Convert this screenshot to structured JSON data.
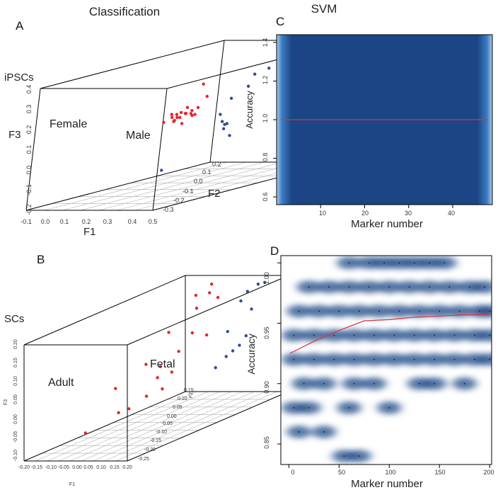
{
  "figure": {
    "title_left": "Classification",
    "title_right": "SVM",
    "panel_labels": [
      "A",
      "B",
      "C",
      "D"
    ]
  },
  "colors": {
    "female_adult": "#e8232a",
    "male_fetal": "#2f4b9c",
    "heat_dark": "#1b4585",
    "heat_light": "#5ea2d8",
    "line": "#e0313a",
    "box": "#000000",
    "floor_grid": "#b0b0b0"
  },
  "chart_data": [
    {
      "panel": "A",
      "type": "scatter",
      "title": "Classification",
      "box_label": "iPSCs",
      "xlabel": "F1",
      "ylabel": "F2",
      "zlabel": "F3",
      "x_ticks": [
        "-0.1",
        "0.0",
        "0.1",
        "0.2",
        "0.3",
        "0.4",
        "0.5"
      ],
      "y_ticks": [
        "-0.3",
        "-0.2",
        "-0.1",
        "0.0",
        "0.1",
        "0.2"
      ],
      "z_ticks": [
        "-0.2",
        "-0.1",
        "0.0",
        "0.1",
        "0.2",
        "0.3",
        "0.4"
      ],
      "groups": [
        "Female",
        "Male"
      ],
      "series": [
        {
          "name": "Female",
          "color": "#e8232a",
          "points": [
            [
              0.02,
              0.02,
              0.12
            ],
            [
              0.03,
              0.0,
              0.13
            ],
            [
              0.04,
              0.01,
              0.11
            ],
            [
              0.05,
              -0.01,
              0.12
            ],
            [
              0.06,
              0.02,
              0.125
            ],
            [
              0.07,
              0.0,
              0.115
            ],
            [
              0.08,
              0.01,
              0.13
            ],
            [
              0.03,
              -0.02,
              0.1
            ],
            [
              0.09,
              0.02,
              0.14
            ],
            [
              0.1,
              0.03,
              0.15
            ],
            [
              0.05,
              0.03,
              0.15
            ],
            [
              0.12,
              0.04,
              0.2
            ],
            [
              0.13,
              0.02,
              0.27
            ],
            [
              0.06,
              -0.01,
              0.1
            ],
            [
              0.11,
              0.01,
              0.12
            ],
            [
              0.14,
              0.0,
              0.13
            ],
            [
              0.08,
              -0.02,
              0.11
            ],
            [
              0.04,
              0.02,
              0.13
            ],
            [
              0.07,
              0.03,
              0.12
            ],
            [
              0.1,
              -0.01,
              0.09
            ]
          ]
        },
        {
          "name": "Male",
          "color": "#2f4b9c",
          "points": [
            [
              0.3,
              0.06,
              0.3
            ],
            [
              0.33,
              0.08,
              0.32
            ],
            [
              0.37,
              0.12,
              0.37
            ],
            [
              0.31,
              0.04,
              0.25
            ],
            [
              0.27,
              0.02,
              0.2
            ],
            [
              0.26,
              0.0,
              0.13
            ],
            [
              0.29,
              -0.01,
              0.1
            ],
            [
              0.28,
              0.01,
              0.08
            ],
            [
              0.25,
              0.02,
              0.05
            ],
            [
              0.32,
              -0.02,
              0.09
            ],
            [
              0.4,
              -0.05,
              0.05
            ],
            [
              0.35,
              -0.2,
              -0.05
            ]
          ]
        }
      ]
    },
    {
      "panel": "B",
      "type": "scatter",
      "box_label": "SCs",
      "xlabel": "F1",
      "ylabel": "F2",
      "zlabel": "F3",
      "x_ticks": [
        "-0.20",
        "-0.15",
        "-0.10",
        "-0.05",
        "0.00",
        "0.05",
        "0.10",
        "0.15",
        "0.20"
      ],
      "y_ticks": [
        "-0.25",
        "-0.20",
        "-0.15",
        "-0.10",
        "-0.05",
        "0.00",
        "0.05",
        "0.10",
        "0.15"
      ],
      "z_ticks": [
        "-0.10",
        "-0.05",
        "0.00",
        "0.05",
        "0.10",
        "0.15",
        "0.20"
      ],
      "groups": [
        "Adult",
        "Fetal"
      ],
      "series": [
        {
          "name": "Adult",
          "color": "#e8232a",
          "points": [
            [
              -0.02,
              0.1,
              0.2
            ],
            [
              0.05,
              0.05,
              0.2
            ],
            [
              -0.05,
              0.08,
              0.18
            ],
            [
              0.02,
              0.09,
              0.17
            ],
            [
              0.0,
              0.05,
              0.16
            ],
            [
              -0.03,
              0.0,
              0.12
            ],
            [
              0.03,
              0.02,
              0.11
            ],
            [
              0.07,
              0.03,
              0.1
            ],
            [
              0.04,
              -0.02,
              0.08
            ],
            [
              -0.04,
              -0.05,
              0.06
            ],
            [
              0.0,
              -0.04,
              0.05
            ],
            [
              0.06,
              -0.05,
              0.04
            ],
            [
              0.02,
              -0.06,
              0.03
            ],
            [
              -0.08,
              -0.1,
              0.02
            ],
            [
              0.04,
              -0.1,
              0.0
            ],
            [
              0.07,
              -0.08,
              0.01
            ],
            [
              0.01,
              -0.15,
              -0.02
            ],
            [
              0.05,
              -0.15,
              -0.01
            ],
            [
              -0.04,
              -0.2,
              -0.05
            ]
          ]
        },
        {
          "name": "Fetal",
          "color": "#2f4b9c",
          "points": [
            [
              0.15,
              0.08,
              0.19
            ],
            [
              0.16,
              0.1,
              0.2
            ],
            [
              0.17,
              0.11,
              0.2
            ],
            [
              0.14,
              0.07,
              0.17
            ],
            [
              0.15,
              0.09,
              0.14
            ],
            [
              0.12,
              0.05,
              0.1
            ],
            [
              0.16,
              0.07,
              0.08
            ],
            [
              0.15,
              0.06,
              0.06
            ],
            [
              0.14,
              0.05,
              0.05
            ],
            [
              0.13,
              0.04,
              0.04
            ],
            [
              0.12,
              0.02,
              0.02
            ]
          ]
        }
      ]
    },
    {
      "panel": "C",
      "type": "heatmap",
      "title": "SVM",
      "xlabel": "Marker number",
      "ylabel": "Accuracy",
      "xlim": [
        0,
        49
      ],
      "ylim": [
        0.56,
        1.44
      ],
      "x_ticks": [
        10,
        20,
        30,
        40
      ],
      "y_ticks": [
        0.6,
        0.8,
        1.0,
        1.2,
        1.4
      ],
      "y_tick_labels": [
        "0.6",
        "0.8",
        "1.0",
        "1.2",
        "1.4"
      ],
      "line": {
        "x": [
          1,
          48
        ],
        "y": [
          1.0,
          1.0
        ]
      }
    },
    {
      "panel": "D",
      "type": "heatmap",
      "xlabel": "Marker number",
      "ylabel": "Accuracy",
      "xlim": [
        -8,
        202
      ],
      "ylim": [
        0.833,
        1.006
      ],
      "x_ticks": [
        0,
        50,
        100,
        150,
        200
      ],
      "y_ticks": [
        0.85,
        0.9,
        0.95,
        1.0
      ],
      "y_tick_labels": [
        "0.85",
        "0.90",
        "0.95",
        "1.00"
      ],
      "density_rows": [
        {
          "y": 1.0,
          "x": [
            60,
            80,
            95,
            110,
            125,
            140,
            155
          ]
        },
        {
          "y": 0.98,
          "x": [
            20,
            40,
            60,
            80,
            100,
            120,
            140,
            160,
            180,
            195
          ]
        },
        {
          "y": 0.96,
          "x": [
            10,
            30,
            50,
            70,
            90,
            110,
            130,
            150,
            170,
            190,
            200
          ]
        },
        {
          "y": 0.94,
          "x": [
            5,
            25,
            45,
            65,
            85,
            105,
            125,
            145,
            165,
            185,
            200
          ]
        },
        {
          "y": 0.92,
          "x": [
            5,
            25,
            45,
            65,
            85,
            105,
            125,
            145,
            165,
            185,
            200
          ]
        },
        {
          "y": 0.9,
          "x": [
            15,
            35,
            65,
            85,
            130,
            145,
            175
          ]
        },
        {
          "y": 0.88,
          "x": [
            5,
            20,
            60,
            100
          ]
        },
        {
          "y": 0.86,
          "x": [
            10,
            35
          ]
        },
        {
          "y": 0.84,
          "x": [
            55,
            70
          ]
        }
      ],
      "line": {
        "x": [
          1,
          25,
          50,
          75,
          100,
          125,
          150,
          175,
          200
        ],
        "y": [
          0.925,
          0.935,
          0.944,
          0.952,
          0.953,
          0.955,
          0.956,
          0.957,
          0.957
        ]
      }
    }
  ]
}
